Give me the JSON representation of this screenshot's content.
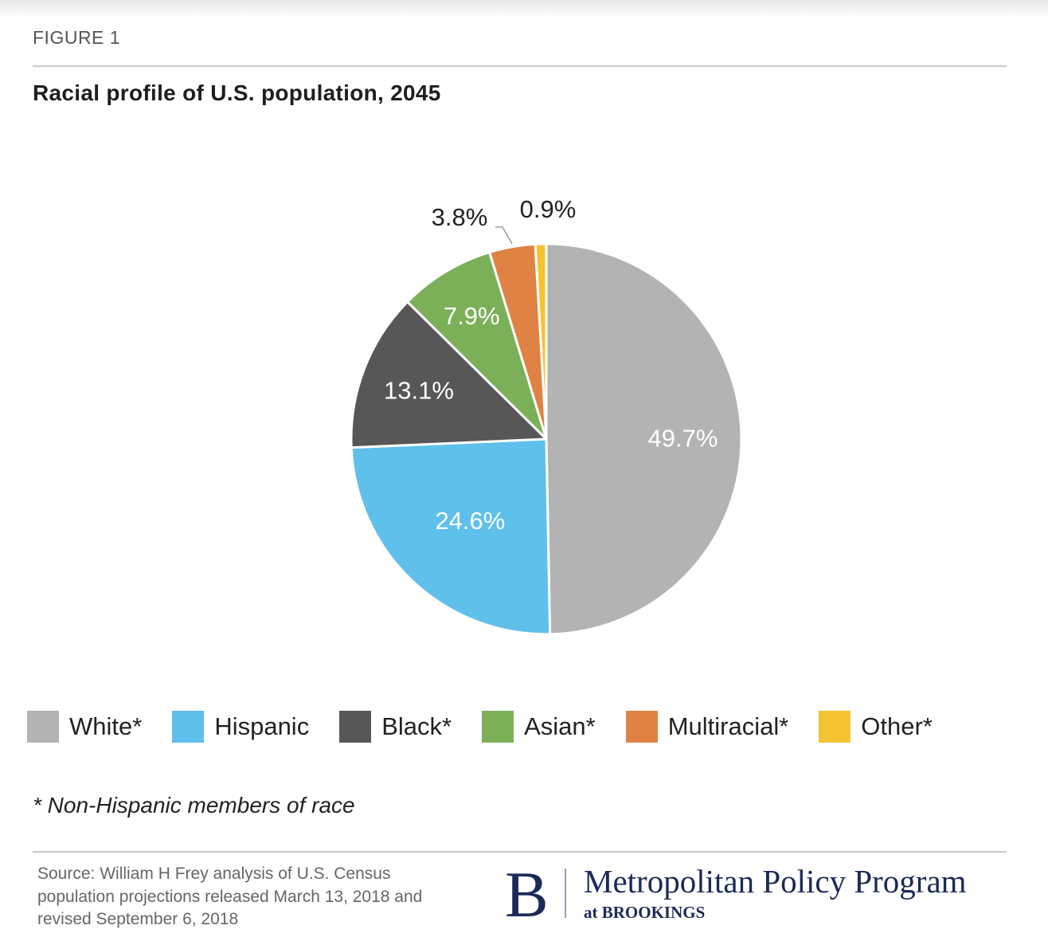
{
  "figure_label": "FIGURE 1",
  "chart_data": {
    "type": "pie",
    "title": "Racial profile of U.S. population, 2045",
    "categories": [
      "White*",
      "Hispanic",
      "Black*",
      "Asian*",
      "Multiracial*",
      "Other*"
    ],
    "values": [
      49.7,
      24.6,
      13.1,
      7.9,
      3.8,
      0.9
    ],
    "data_labels": [
      "49.7%",
      "24.6%",
      "13.1%",
      "7.9%",
      "3.8%",
      "0.9%"
    ],
    "colors": [
      "#b3b3b3",
      "#5fc0eb",
      "#575757",
      "#7cb058",
      "#e08243",
      "#f5c332"
    ],
    "legend_placement": "bottom",
    "start": "12 o'clock, clockwise"
  },
  "legend": [
    {
      "label": "White*",
      "color": "#b3b3b3"
    },
    {
      "label": "Hispanic",
      "color": "#5fc0eb"
    },
    {
      "label": "Black*",
      "color": "#575757"
    },
    {
      "label": "Asian*",
      "color": "#7cb058"
    },
    {
      "label": "Multiracial*",
      "color": "#e08243"
    },
    {
      "label": "Other*",
      "color": "#f5c332"
    }
  ],
  "footnote": "* Non-Hispanic members of race",
  "source": "Source: William H Frey analysis of U.S. Census population projections released March 13, 2018 and revised September 6, 2018",
  "logo": {
    "letter": "B",
    "program": "Metropolitan Policy Program",
    "sub": "at BROOKINGS"
  }
}
